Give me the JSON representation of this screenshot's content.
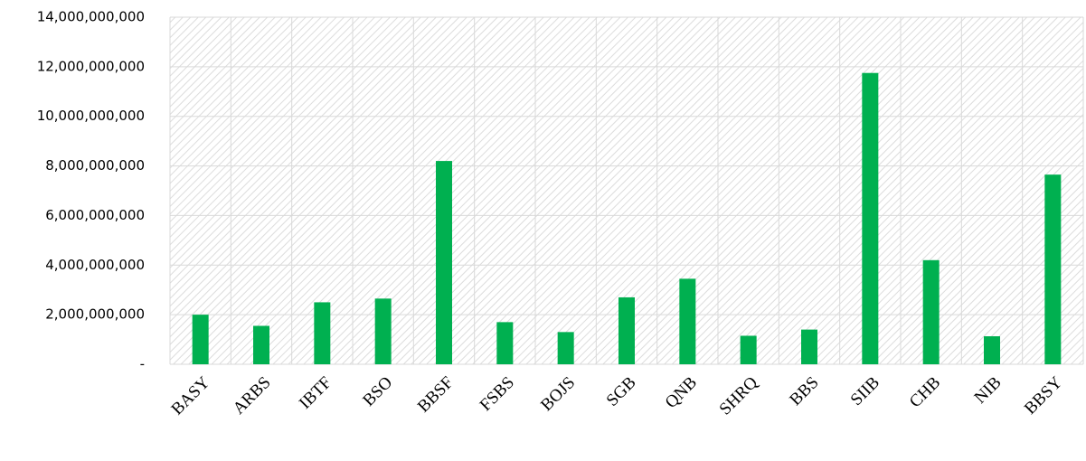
{
  "chart_data": {
    "type": "bar",
    "categories": [
      "BASY",
      "ARBS",
      "IBTF",
      "BSO",
      "BBSF",
      "FSBS",
      "BOJS",
      "SGB",
      "QNB",
      "SHRQ",
      "BBS",
      "SIIB",
      "CHB",
      "NIB",
      "BBSY"
    ],
    "values": [
      2000000000,
      1550000000,
      2500000000,
      2650000000,
      8200000000,
      1700000000,
      1300000000,
      2700000000,
      3450000000,
      1150000000,
      1400000000,
      11750000000,
      4200000000,
      1130000000,
      7650000000
    ],
    "color": "#00b050",
    "ylim": [
      0,
      14000000000
    ],
    "yticks": [
      {
        "value": 0,
        "label": "-"
      },
      {
        "value": 2000000000,
        "label": "2,000,000,000"
      },
      {
        "value": 4000000000,
        "label": "4,000,000,000"
      },
      {
        "value": 6000000000,
        "label": "6,000,000,000"
      },
      {
        "value": 8000000000,
        "label": "8,000,000,000"
      },
      {
        "value": 10000000000,
        "label": "10,000,000,000"
      },
      {
        "value": 12000000000,
        "label": "12,000,000,000"
      },
      {
        "value": 14000000000,
        "label": "14,000,000,000"
      }
    ],
    "grid": true
  }
}
